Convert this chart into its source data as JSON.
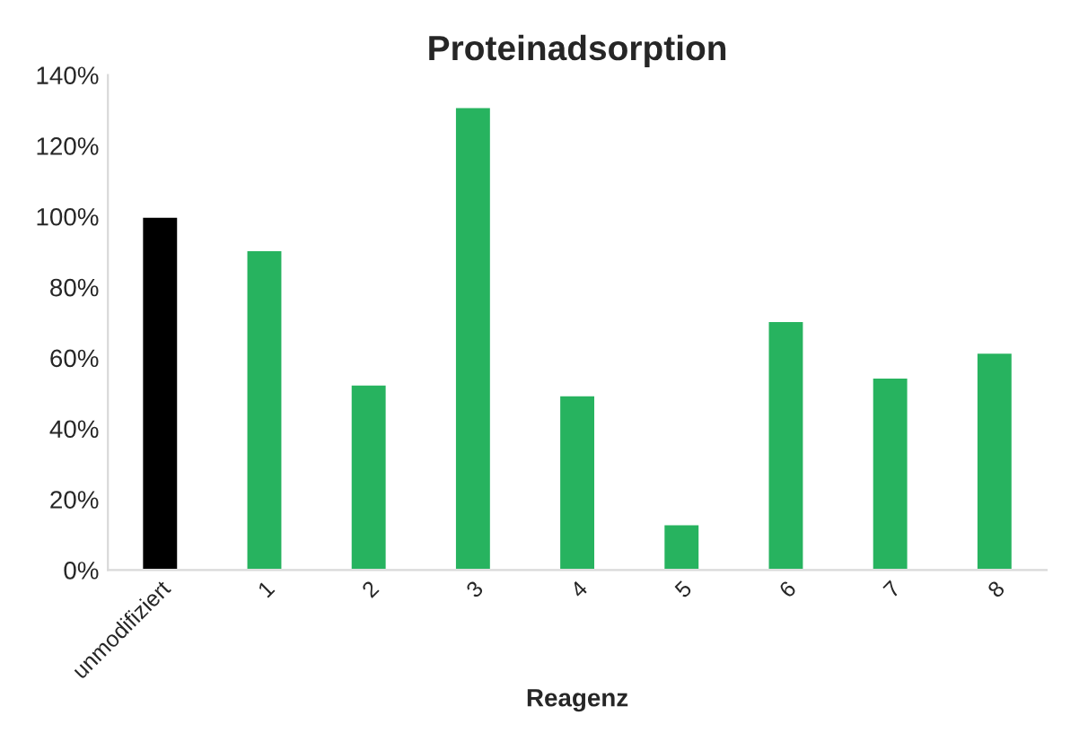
{
  "chart_data": {
    "type": "bar",
    "title": "Proteinadsorption",
    "xlabel": "Reagenz",
    "categories": [
      "unmodifiziert",
      "1",
      "2",
      "3",
      "4",
      "5",
      "6",
      "7",
      "8"
    ],
    "values": [
      100,
      90.5,
      52.5,
      131,
      49.5,
      13,
      70.5,
      54.5,
      61.5
    ],
    "colors": [
      "#000000",
      "#27b35f",
      "#27b35f",
      "#27b35f",
      "#27b35f",
      "#27b35f",
      "#27b35f",
      "#27b35f",
      "#27b35f"
    ],
    "ylim": [
      0,
      140
    ],
    "yticks": [
      {
        "value": 0,
        "label": "0%"
      },
      {
        "value": 20,
        "label": "20%"
      },
      {
        "value": 40,
        "label": "40%"
      },
      {
        "value": 60,
        "label": "60%"
      },
      {
        "value": 80,
        "label": "80%"
      },
      {
        "value": 100,
        "label": "100%"
      },
      {
        "value": 120,
        "label": "120%"
      },
      {
        "value": 140,
        "label": "140%"
      }
    ],
    "grid": false,
    "legend": false
  }
}
